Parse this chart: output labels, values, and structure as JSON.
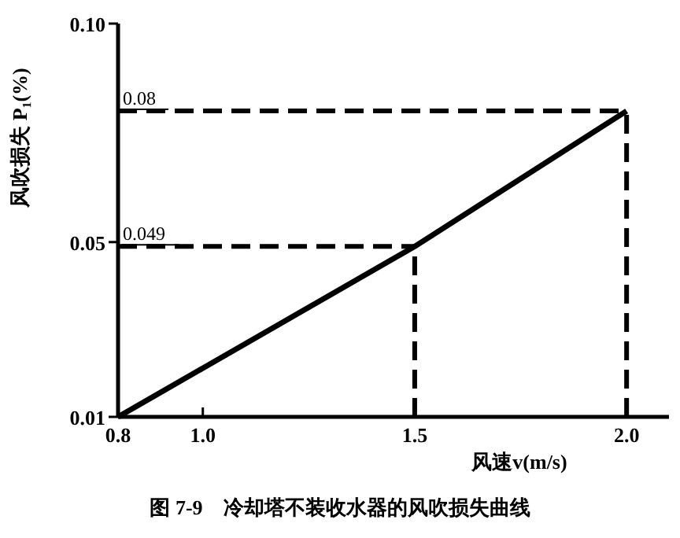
{
  "chart_data": {
    "type": "line",
    "title": "图 7-9　冷却塔不装收水器的风吹损失曲线",
    "xlabel": "风速v(m/s)",
    "ylabel": "风吹损失 P₁(%)",
    "x": [
      0.8,
      1.5,
      2.0
    ],
    "series": [
      {
        "color": "#000000",
        "values": [
          0.01,
          0.049,
          0.08
        ]
      }
    ],
    "xlim": [
      0.8,
      2.1
    ],
    "xticks": [
      0.8,
      {
        "value": 1.0,
        "label": "1.0"
      },
      1.5,
      {
        "value": 2.0,
        "label": "2.0"
      }
    ],
    "ylim": [
      0.01,
      0.1
    ],
    "yticks": [
      0.01,
      0.05,
      {
        "value": 0.1,
        "label": "0.10"
      }
    ],
    "ref_lines": [
      {
        "axis": "y",
        "value": 0.08,
        "label": "0.08",
        "line_style": "dashed"
      },
      {
        "axis": "y",
        "value": 0.049,
        "label": "0.049",
        "line_style": "dashed"
      },
      {
        "axis": "x",
        "value": 1.5,
        "label": null,
        "line_style": "dashed"
      },
      {
        "axis": "x",
        "value": 2.0,
        "label": null,
        "line_style": "dashed"
      }
    ],
    "grid": false,
    "marker": "none",
    "line_style": "solid"
  }
}
